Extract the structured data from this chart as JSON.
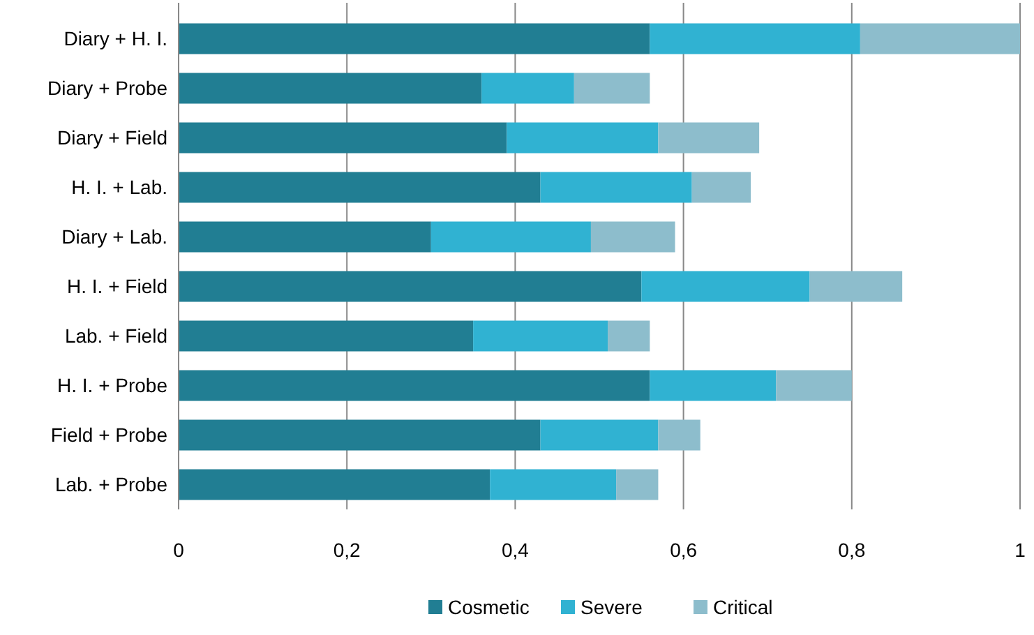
{
  "chart_data": {
    "type": "bar",
    "orientation": "horizontal",
    "stacked": true,
    "categories": [
      "Diary + H. I.",
      "Diary + Probe",
      "Diary + Field",
      "H. I. + Lab.",
      "Diary + Lab.",
      "H. I. + Field",
      "Lab. + Field",
      "H. I. + Probe",
      "Field + Probe",
      "Lab. + Probe"
    ],
    "series": [
      {
        "name": "Cosmetic",
        "color": "#217e93",
        "values": [
          0.56,
          0.36,
          0.39,
          0.43,
          0.3,
          0.55,
          0.35,
          0.56,
          0.43,
          0.37
        ]
      },
      {
        "name": "Severe",
        "color": "#30b2d2",
        "values": [
          0.25,
          0.11,
          0.18,
          0.18,
          0.19,
          0.2,
          0.16,
          0.15,
          0.14,
          0.15
        ]
      },
      {
        "name": "Critical",
        "color": "#8dbdcc",
        "values": [
          0.19,
          0.09,
          0.12,
          0.07,
          0.1,
          0.11,
          0.05,
          0.09,
          0.05,
          0.05
        ]
      }
    ],
    "xlim": [
      0,
      1
    ],
    "xticks": [
      0,
      {
        "value": 0.2,
        "label": "0,2"
      },
      {
        "value": 0.4,
        "label": "0,4"
      },
      {
        "value": 0.6,
        "label": "0,6"
      },
      {
        "value": 0.8,
        "label": "0,8"
      },
      1
    ],
    "grid": "x",
    "legend": "bottom"
  }
}
